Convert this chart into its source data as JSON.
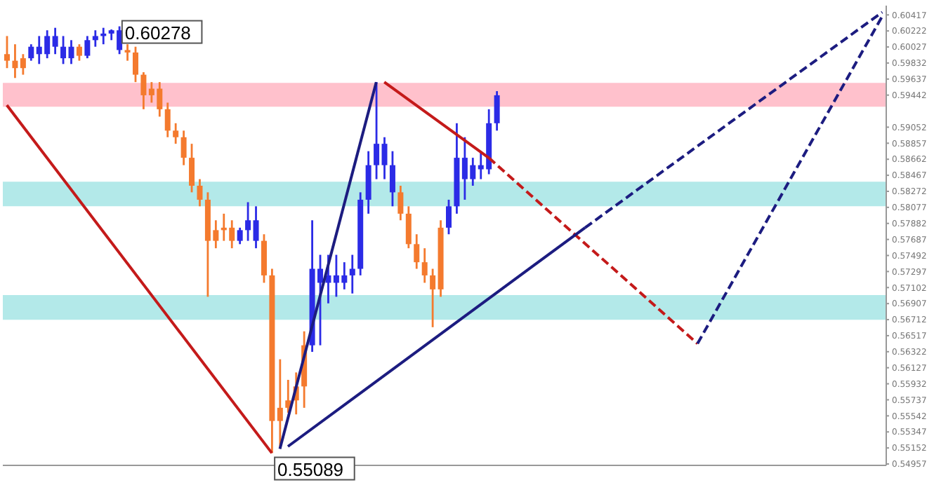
{
  "chart_data": {
    "type": "candlestick",
    "ylim": [
      0.5494,
      0.6053
    ],
    "yticks": [
      0.60417,
      0.60222,
      0.60027,
      0.59832,
      0.59637,
      0.59442,
      0.59052,
      0.58857,
      0.58662,
      0.58467,
      0.58272,
      0.58077,
      0.57882,
      0.57687,
      0.57492,
      0.57297,
      0.57102,
      0.56907,
      0.56712,
      0.56517,
      0.56322,
      0.56127,
      0.55932,
      0.55737,
      0.55542,
      0.55347,
      0.55152,
      0.54957
    ],
    "categories": [
      null,
      null,
      null,
      null,
      null,
      null,
      null,
      null,
      null,
      null,
      null,
      null,
      null,
      null,
      null,
      null,
      null,
      null,
      null,
      null,
      null,
      null,
      null,
      null,
      null,
      null,
      null,
      null,
      null,
      null,
      null,
      null,
      null,
      null,
      null,
      null,
      null,
      null,
      null,
      null,
      null,
      null,
      null,
      null,
      null,
      null,
      null,
      null,
      null,
      null,
      null,
      null,
      null,
      null,
      null,
      null,
      null,
      null,
      null,
      null,
      null,
      null,
      null,
      null,
      null,
      null,
      null,
      null,
      null,
      null,
      null,
      null,
      null,
      null,
      null,
      null,
      null,
      null,
      null,
      null,
      null,
      null,
      null,
      null,
      null,
      null,
      null,
      null,
      null,
      null,
      null,
      null,
      null,
      null,
      null,
      null,
      null,
      null,
      null,
      null,
      null,
      null,
      null,
      null,
      null,
      null,
      null,
      null,
      null,
      null
    ],
    "ohlc": [
      [
        0.5994,
        0.6016,
        0.5977,
        0.5986
      ],
      [
        0.5986,
        0.6006,
        0.5965,
        0.5977
      ],
      [
        0.5989,
        0.5994,
        0.5969,
        0.5977
      ],
      [
        0.5989,
        0.6006,
        0.5986,
        0.6003
      ],
      [
        0.5994,
        0.6016,
        0.5982,
        0.6003
      ],
      [
        0.5994,
        0.6023,
        0.5989,
        0.6016
      ],
      [
        0.6003,
        0.6026,
        0.5994,
        0.6016
      ],
      [
        0.5989,
        0.6016,
        0.5982,
        0.6003
      ],
      [
        0.5989,
        0.6011,
        0.5982,
        0.6003
      ],
      [
        0.6003,
        0.6006,
        0.5986,
        0.5992
      ],
      [
        0.5992,
        0.6016,
        0.5989,
        0.6011
      ],
      [
        0.6011,
        0.6023,
        0.6003,
        0.6016
      ],
      [
        0.6016,
        0.6026,
        0.6006,
        0.6019
      ],
      [
        0.6019,
        0.6024,
        0.6011,
        0.6023
      ],
      [
        0.5999,
        0.60278,
        0.5994,
        0.6023
      ],
      [
        0.5999,
        0.6006,
        0.5986,
        0.5996
      ],
      [
        0.5996,
        0.6003,
        0.596,
        0.5969
      ],
      [
        0.5969,
        0.5972,
        0.5927,
        0.5944
      ],
      [
        0.5952,
        0.596,
        0.5935,
        0.5944
      ],
      [
        0.5952,
        0.596,
        0.5918,
        0.5927
      ],
      [
        0.5927,
        0.5935,
        0.5893,
        0.5901
      ],
      [
        0.5901,
        0.591,
        0.5885,
        0.5893
      ],
      [
        0.5893,
        0.5901,
        0.5859,
        0.5868
      ],
      [
        0.5868,
        0.5885,
        0.5826,
        0.5834
      ],
      [
        0.5834,
        0.5842,
        0.5809,
        0.5817
      ],
      [
        0.5817,
        0.5826,
        0.5699,
        0.5767
      ],
      [
        0.578,
        0.5792,
        0.5758,
        0.5767
      ],
      [
        0.5783,
        0.58,
        0.5767,
        0.578
      ],
      [
        0.5783,
        0.5792,
        0.5758,
        0.5767
      ],
      [
        0.5767,
        0.5783,
        0.5763,
        0.578
      ],
      [
        0.578,
        0.5814,
        0.5767,
        0.5792
      ],
      [
        0.5767,
        0.5809,
        0.5758,
        0.5792
      ],
      [
        0.5767,
        0.5775,
        0.5716,
        0.5725
      ],
      [
        0.5725,
        0.5733,
        0.55089,
        0.5548
      ],
      [
        0.5564,
        0.5623,
        0.5517,
        0.5548
      ],
      [
        0.5573,
        0.5598,
        0.5558,
        0.5564
      ],
      [
        0.559,
        0.5607,
        0.5556,
        0.5573
      ],
      [
        0.564,
        0.5657,
        0.5564,
        0.559
      ],
      [
        0.564,
        0.5792,
        0.5632,
        0.5733
      ],
      [
        0.5716,
        0.575,
        0.564,
        0.5733
      ],
      [
        0.5716,
        0.575,
        0.5691,
        0.5725
      ],
      [
        0.5716,
        0.575,
        0.5699,
        0.5725
      ],
      [
        0.5716,
        0.5741,
        0.5708,
        0.5725
      ],
      [
        0.5725,
        0.575,
        0.5703,
        0.5733
      ],
      [
        0.5733,
        0.5826,
        0.5725,
        0.5817
      ],
      [
        0.5817,
        0.5876,
        0.58,
        0.5859
      ],
      [
        0.5859,
        0.596,
        0.5842,
        0.5885
      ],
      [
        0.5859,
        0.5893,
        0.5842,
        0.5885
      ],
      [
        0.5826,
        0.5876,
        0.5809,
        0.5859
      ],
      [
        0.5826,
        0.5834,
        0.5792,
        0.58
      ],
      [
        0.58,
        0.5809,
        0.5758,
        0.5763
      ],
      [
        0.5763,
        0.5775,
        0.5733,
        0.5741
      ],
      [
        0.5741,
        0.5758,
        0.5716,
        0.5725
      ],
      [
        0.5725,
        0.5733,
        0.5662,
        0.5708
      ],
      [
        0.5783,
        0.5792,
        0.5699,
        0.5708
      ],
      [
        0.5783,
        0.5817,
        0.5775,
        0.5809
      ],
      [
        0.5809,
        0.591,
        0.58,
        0.5868
      ],
      [
        0.5842,
        0.5893,
        0.5817,
        0.5868
      ],
      [
        0.5842,
        0.5868,
        0.5834,
        0.5859
      ],
      [
        0.5854,
        0.5876,
        0.5842,
        0.5859
      ],
      [
        0.5854,
        0.5927,
        0.5848,
        0.591
      ],
      [
        0.591,
        0.5949,
        0.5901,
        0.5944
      ],
      null,
      null,
      null,
      null,
      null,
      null,
      null,
      null,
      null,
      null,
      null,
      null,
      null,
      null,
      null,
      null,
      null,
      null,
      null,
      null,
      null,
      null,
      null,
      null,
      null,
      null,
      null,
      null,
      null,
      null,
      null,
      null,
      null,
      null,
      null,
      null,
      null,
      null,
      null,
      null,
      null,
      null,
      null,
      null,
      null,
      null,
      null,
      null
    ],
    "colors": [
      "#f47a2e",
      "#f47a2e",
      "#f47a2e",
      "#2b2be6",
      "#2b2be6",
      "#2b2be6",
      "#2b2be6",
      "#2b2be6",
      "#2b2be6",
      "#f47a2e",
      "#2b2be6",
      "#2b2be6",
      "#2b2be6",
      "#2b2be6",
      "#2b2be6",
      "#f47a2e",
      "#f47a2e",
      "#f47a2e",
      "#f47a2e",
      "#f47a2e",
      "#f47a2e",
      "#f47a2e",
      "#f47a2e",
      "#f47a2e",
      "#f47a2e",
      "#f47a2e",
      "#f47a2e",
      "#f47a2e",
      "#f47a2e",
      "#2b2be6",
      "#2b2be6",
      "#2b2be6",
      "#f47a2e",
      "#f47a2e",
      "#f47a2e",
      "#f47a2e",
      "#f47a2e",
      "#f47a2e",
      "#2b2be6",
      "#2b2be6",
      "#2b2be6",
      "#2b2be6",
      "#2b2be6",
      "#2b2be6",
      "#2b2be6",
      "#2b2be6",
      "#2b2be6",
      "#2b2be6",
      "#2b2be6",
      "#f47a2e",
      "#f47a2e",
      "#f47a2e",
      "#f47a2e",
      "#f47a2e",
      "#f47a2e",
      "#2b2be6",
      "#2b2be6",
      "#2b2be6",
      "#2b2be6",
      "#2b2be6",
      "#2b2be6",
      "#2b2be6",
      null,
      null,
      null,
      null,
      null,
      null,
      null,
      null,
      null,
      null,
      null,
      null,
      null,
      null,
      null,
      null,
      null,
      null,
      null,
      null,
      null,
      null,
      null,
      null,
      null,
      null,
      null,
      null,
      null,
      null,
      null,
      null,
      null,
      null,
      null,
      null,
      null,
      null,
      null,
      null,
      null,
      null,
      null,
      null,
      null,
      null,
      null,
      null
    ],
    "series": [
      {
        "type": "line",
        "color": "#c41a1a",
        "line_style": "solid",
        "values": [
          0.5932,
          null,
          null,
          null,
          null,
          null,
          null,
          null,
          null,
          null,
          null,
          null,
          null,
          null,
          null,
          null,
          null,
          null,
          null,
          null,
          null,
          null,
          null,
          null,
          null,
          null,
          null,
          null,
          null,
          null,
          null,
          null,
          null,
          0.5509,
          null,
          null,
          null,
          null,
          null,
          null,
          null,
          null,
          null,
          null,
          null,
          null,
          null,
          null,
          null,
          null,
          null,
          null,
          null,
          null,
          null,
          null,
          null,
          null,
          null,
          null,
          null,
          null,
          null,
          null,
          null,
          null,
          null,
          null,
          null,
          null,
          null,
          null,
          null,
          null,
          null,
          null,
          null,
          null,
          null,
          null,
          null,
          null,
          null,
          null,
          null,
          null,
          null,
          null,
          null,
          null,
          null,
          null,
          null,
          null,
          null,
          null,
          null,
          null,
          null,
          null,
          null,
          null,
          null,
          null,
          null,
          null,
          null,
          null,
          null,
          null
        ]
      },
      {
        "type": "line",
        "color": "#1c1c80",
        "line_style": "solid",
        "values": [
          null,
          null,
          null,
          null,
          null,
          null,
          null,
          null,
          null,
          null,
          null,
          null,
          null,
          null,
          null,
          null,
          null,
          null,
          null,
          null,
          null,
          null,
          null,
          null,
          null,
          null,
          null,
          null,
          null,
          null,
          null,
          null,
          null,
          null,
          0.5514,
          null,
          null,
          null,
          null,
          null,
          null,
          null,
          null,
          null,
          null,
          null,
          0.596,
          null,
          null,
          null,
          null,
          null,
          null,
          null,
          null,
          null,
          null,
          null,
          null,
          null,
          null,
          null,
          null,
          null,
          null,
          null,
          null,
          null,
          null,
          null,
          null,
          null,
          null,
          null,
          null,
          null,
          null,
          null,
          null,
          null,
          null,
          null,
          null,
          null,
          null,
          null,
          null,
          null,
          null,
          null,
          null,
          null,
          null,
          null,
          null,
          null,
          null,
          null,
          null,
          null,
          null,
          null,
          null,
          null,
          null,
          null,
          null,
          null,
          null,
          null
        ]
      },
      {
        "type": "line",
        "color": "#c41a1a",
        "line_style": "solid",
        "values": [
          null,
          null,
          null,
          null,
          null,
          null,
          null,
          null,
          null,
          null,
          null,
          null,
          null,
          null,
          null,
          null,
          null,
          null,
          null,
          null,
          null,
          null,
          null,
          null,
          null,
          null,
          null,
          null,
          null,
          null,
          null,
          null,
          null,
          null,
          null,
          null,
          null,
          null,
          null,
          null,
          null,
          null,
          null,
          null,
          null,
          null,
          null,
          0.596,
          null,
          null,
          null,
          null,
          null,
          null,
          null,
          null,
          null,
          null,
          null,
          null,
          0.5868,
          null,
          null,
          null,
          null,
          null,
          null,
          null,
          null,
          null,
          null,
          null,
          null,
          null,
          null,
          null,
          null,
          null,
          null,
          null,
          null,
          null,
          null,
          null,
          null,
          null,
          null,
          null,
          null,
          null,
          null,
          null,
          null,
          null,
          null,
          null,
          null,
          null,
          null,
          null,
          null,
          null,
          null,
          null,
          null,
          null,
          null,
          null,
          null,
          null
        ]
      },
      {
        "type": "line",
        "color": "#c41a1a",
        "line_style": "dashed",
        "values": [
          null,
          null,
          null,
          null,
          null,
          null,
          null,
          null,
          null,
          null,
          null,
          null,
          null,
          null,
          null,
          null,
          null,
          null,
          null,
          null,
          null,
          null,
          null,
          null,
          null,
          null,
          null,
          null,
          null,
          null,
          null,
          null,
          null,
          null,
          null,
          null,
          null,
          null,
          null,
          null,
          null,
          null,
          null,
          null,
          null,
          null,
          null,
          null,
          null,
          null,
          null,
          null,
          null,
          null,
          null,
          null,
          null,
          null,
          null,
          null,
          0.5868,
          null,
          null,
          null,
          null,
          null,
          null,
          null,
          null,
          null,
          null,
          null,
          null,
          null,
          null,
          null,
          null,
          null,
          null,
          null,
          null,
          null,
          null,
          null,
          null,
          null,
          0.5642,
          null,
          null,
          null,
          null,
          null,
          null,
          null,
          null,
          null,
          null,
          null,
          null,
          null,
          null,
          null,
          null,
          null,
          null,
          null,
          null,
          null,
          null,
          null
        ]
      },
      {
        "type": "line",
        "color": "#1c1c80",
        "line_style": "solid",
        "values": [
          null,
          null,
          null,
          null,
          null,
          null,
          null,
          null,
          null,
          null,
          null,
          null,
          null,
          null,
          null,
          null,
          null,
          null,
          null,
          null,
          null,
          null,
          null,
          null,
          null,
          null,
          null,
          null,
          null,
          null,
          null,
          null,
          null,
          null,
          null,
          0.5517,
          null,
          null,
          null,
          null,
          null,
          null,
          null,
          null,
          null,
          null,
          null,
          null,
          null,
          null,
          null,
          null,
          null,
          null,
          null,
          null,
          null,
          null,
          null,
          null,
          null,
          null,
          null,
          null,
          null,
          null,
          null,
          null,
          null,
          null,
          null,
          null,
          0.5783,
          null,
          null,
          null,
          null,
          null,
          null,
          null,
          null,
          null,
          null,
          null,
          null,
          null,
          null,
          null,
          null,
          null,
          null,
          null,
          null,
          null,
          null,
          null,
          null,
          null,
          null,
          null,
          null,
          null,
          null,
          null,
          null,
          null,
          null,
          null,
          null,
          null
        ]
      },
      {
        "type": "line",
        "color": "#1c1c80",
        "line_style": "dashed",
        "values": [
          null,
          null,
          null,
          null,
          null,
          null,
          null,
          null,
          null,
          null,
          null,
          null,
          null,
          null,
          null,
          null,
          null,
          null,
          null,
          null,
          null,
          null,
          null,
          null,
          null,
          null,
          null,
          null,
          null,
          null,
          null,
          null,
          null,
          null,
          null,
          null,
          null,
          null,
          null,
          null,
          null,
          null,
          null,
          null,
          null,
          null,
          null,
          null,
          null,
          null,
          null,
          null,
          null,
          null,
          null,
          null,
          null,
          null,
          null,
          null,
          null,
          null,
          null,
          null,
          null,
          null,
          null,
          null,
          null,
          null,
          null,
          null,
          0.5783,
          null,
          null,
          null,
          null,
          null,
          null,
          null,
          null,
          null,
          null,
          null,
          null,
          null,
          null,
          null,
          null,
          null,
          null,
          null,
          null,
          null,
          null,
          null,
          null,
          null,
          null,
          null,
          null,
          null,
          null,
          null,
          null,
          null,
          null,
          null,
          null,
          0.6045
        ]
      },
      {
        "type": "line",
        "color": "#1c1c80",
        "line_style": "dashed",
        "values": [
          null,
          null,
          null,
          null,
          null,
          null,
          null,
          null,
          null,
          null,
          null,
          null,
          null,
          null,
          null,
          null,
          null,
          null,
          null,
          null,
          null,
          null,
          null,
          null,
          null,
          null,
          null,
          null,
          null,
          null,
          null,
          null,
          null,
          null,
          null,
          null,
          null,
          null,
          null,
          null,
          null,
          null,
          null,
          null,
          null,
          null,
          null,
          null,
          null,
          null,
          null,
          null,
          null,
          null,
          null,
          null,
          null,
          null,
          null,
          null,
          null,
          null,
          null,
          null,
          null,
          null,
          null,
          null,
          null,
          null,
          null,
          null,
          null,
          null,
          null,
          null,
          null,
          null,
          null,
          null,
          null,
          null,
          null,
          null,
          null,
          null,
          0.5642,
          null,
          null,
          null,
          null,
          null,
          null,
          null,
          null,
          null,
          null,
          null,
          null,
          null,
          null,
          null,
          null,
          null,
          null,
          null,
          null,
          null,
          null,
          0.604
        ]
      }
    ],
    "bands": [
      {
        "axis": "y",
        "from": 0.593,
        "to": 0.5959,
        "color": "#ffc1cc"
      },
      {
        "axis": "y",
        "from": 0.5809,
        "to": 0.5839,
        "color": "#b3e9e9"
      },
      {
        "axis": "y",
        "from": 0.5671,
        "to": 0.5701,
        "color": "#b3e9e9"
      }
    ],
    "annotations": [
      "0.60278",
      "0.55089"
    ]
  }
}
